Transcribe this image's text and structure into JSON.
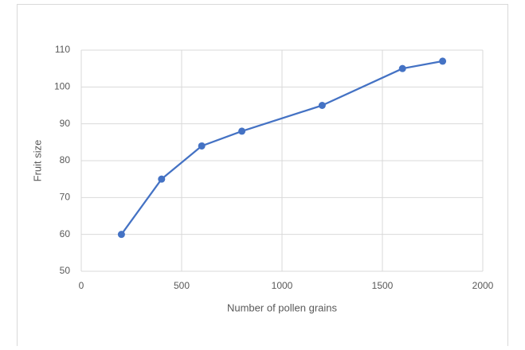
{
  "chart_data": {
    "type": "line",
    "x_label": "Number of pollen grains",
    "y_label": "Fruit size",
    "x": [
      200,
      400,
      600,
      800,
      1200,
      1600,
      1800
    ],
    "values": [
      60,
      75,
      84,
      88,
      95,
      105,
      107
    ],
    "color": "#4472c4",
    "markers": true,
    "xlim": [
      0,
      2000
    ],
    "xticks": [
      0,
      500,
      1000,
      1500,
      2000
    ],
    "ylim": [
      50,
      110
    ],
    "yticks": [
      50,
      60,
      70,
      80,
      90,
      100,
      110
    ],
    "grid": true
  }
}
